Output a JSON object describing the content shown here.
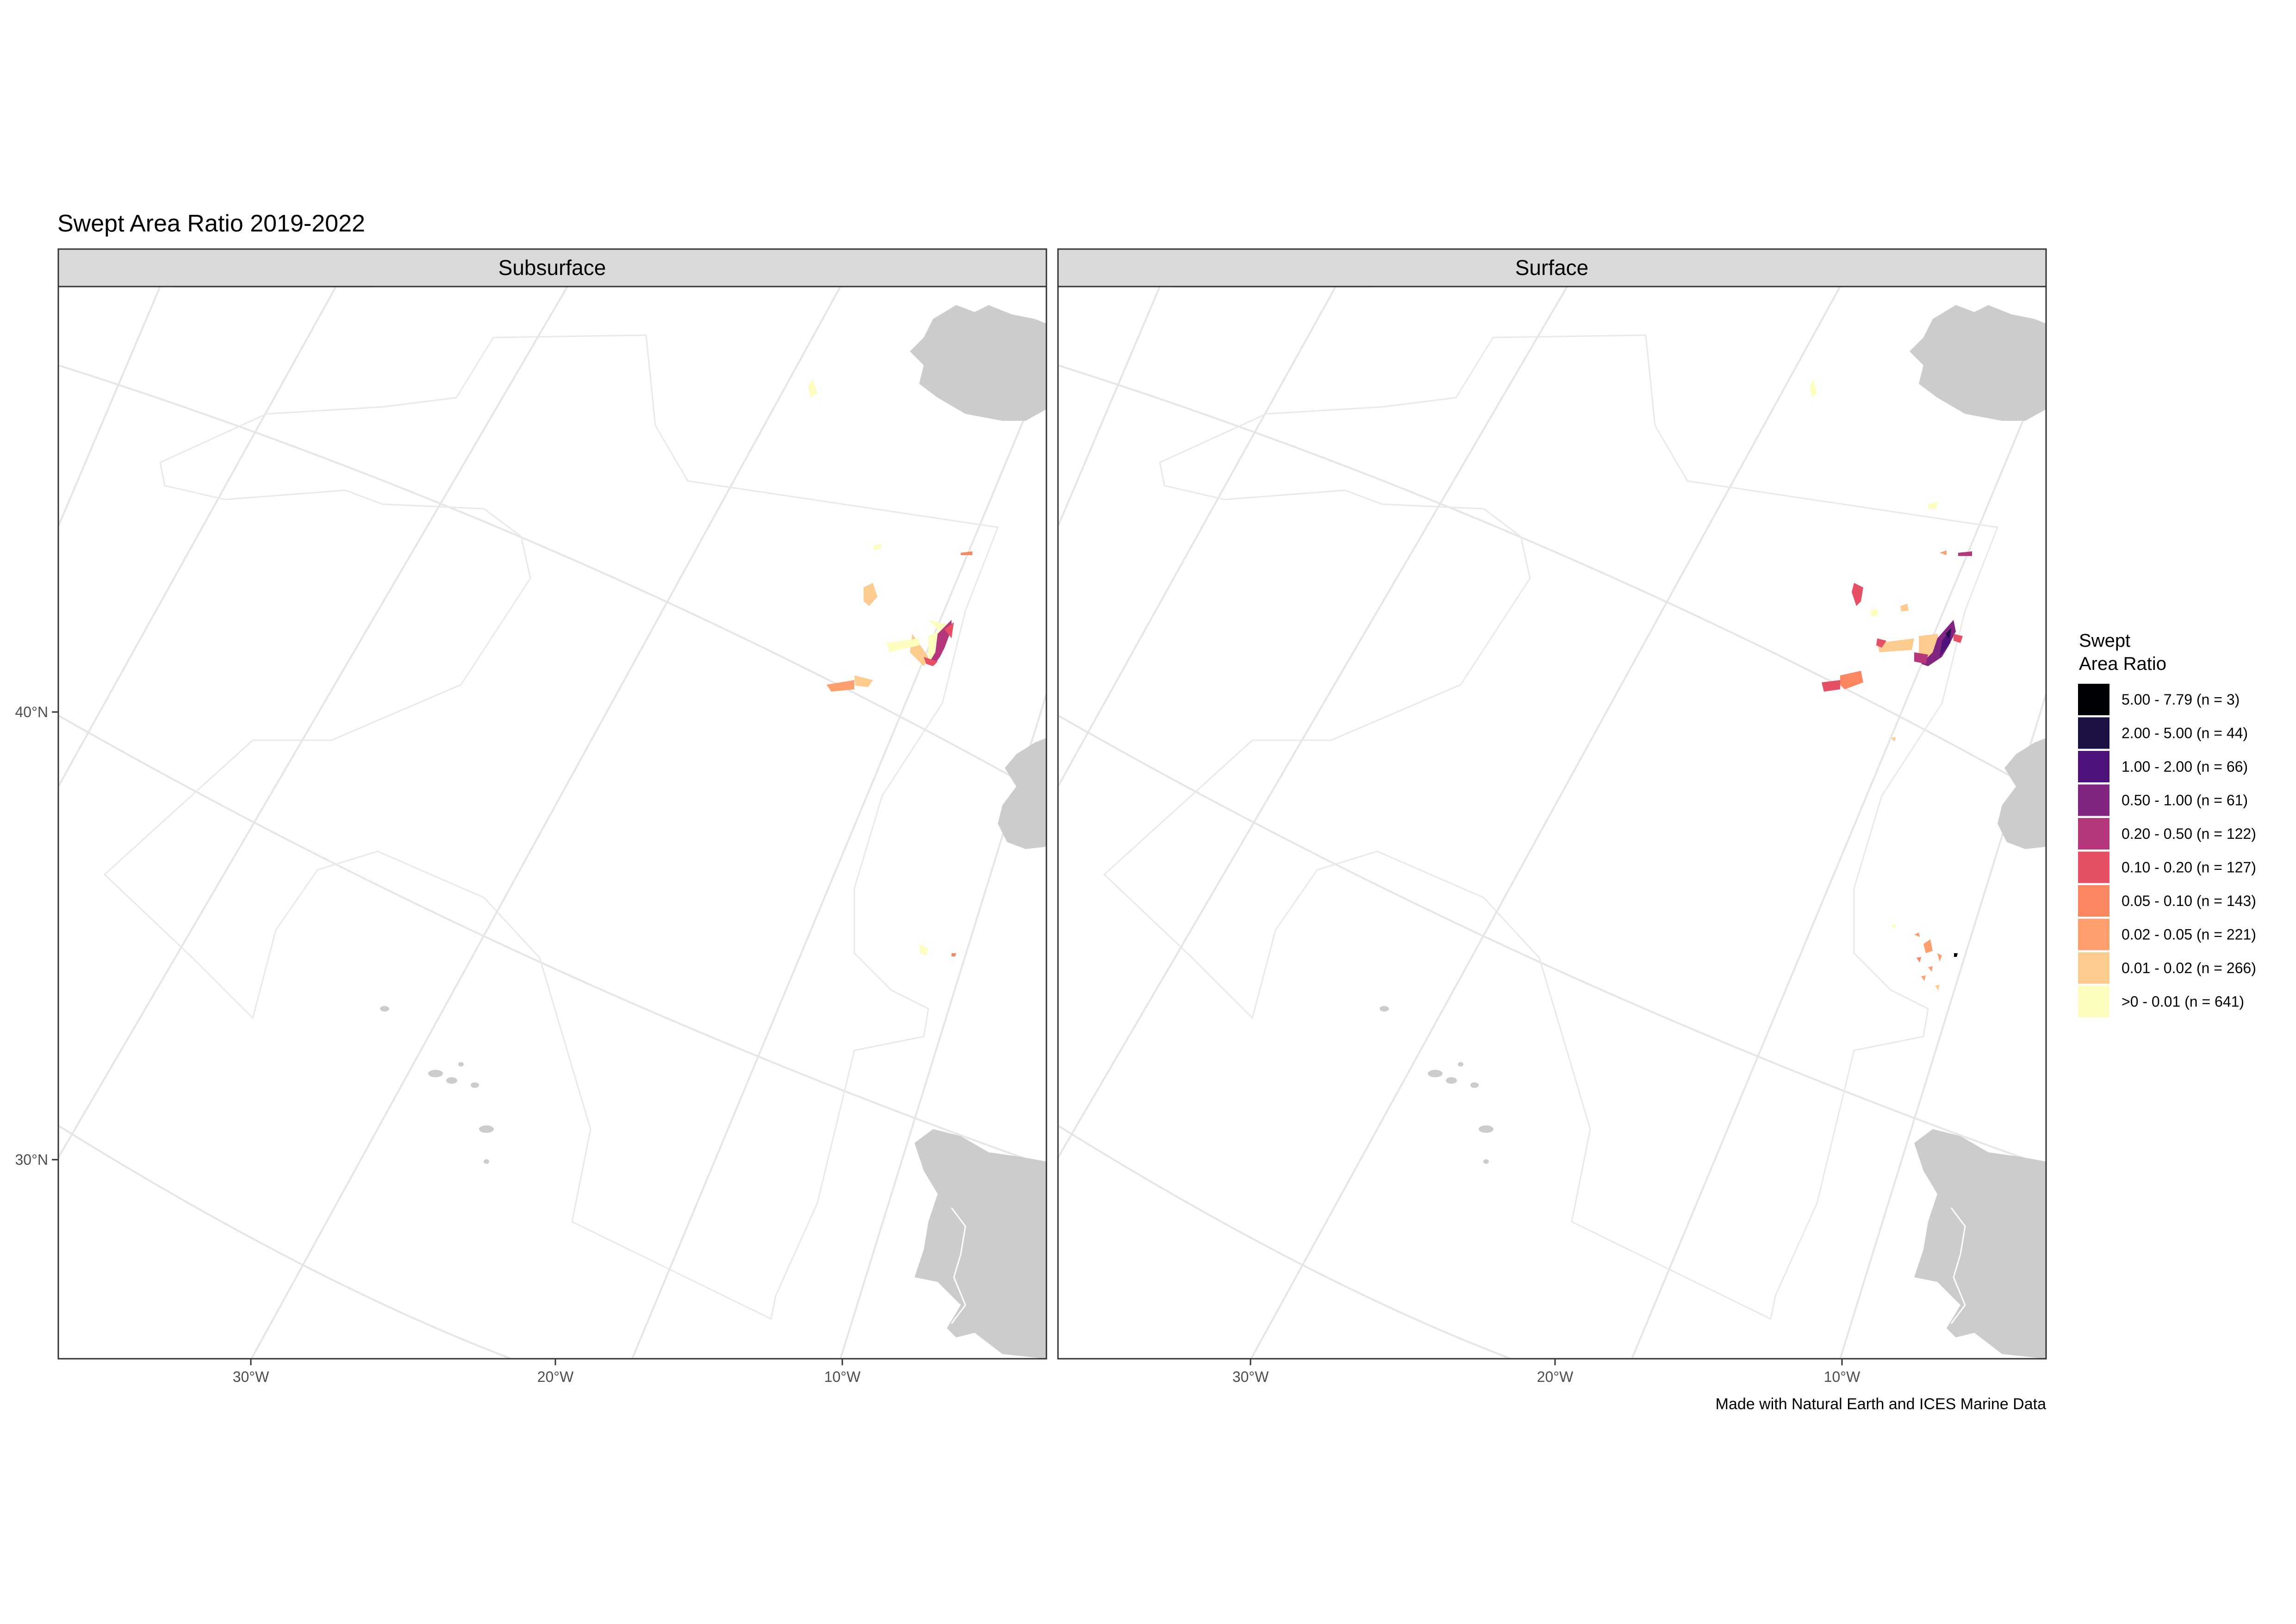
{
  "title": "Swept Area Ratio 2019-2022",
  "panels": [
    {
      "label": "Subsurface"
    },
    {
      "label": "Surface"
    }
  ],
  "axes": {
    "x_ticks": [
      "30°W",
      "20°W",
      "10°W"
    ],
    "y_ticks": [
      "40°N",
      "30°N"
    ]
  },
  "legend": {
    "title_line1": "Swept",
    "title_line2": "Area Ratio",
    "items": [
      {
        "label": "5.00 - 7.79 (n = 3)",
        "color": "#000004"
      },
      {
        "label": "2.00 - 5.00 (n = 44)",
        "color": "#1c1044"
      },
      {
        "label": "1.00 - 2.00 (n = 66)",
        "color": "#4f127b"
      },
      {
        "label": "0.50 - 1.00 (n = 61)",
        "color": "#812581"
      },
      {
        "label": "0.20 - 0.50 (n = 122)",
        "color": "#b5367a"
      },
      {
        "label": "0.10 - 0.20 (n = 127)",
        "color": "#e55064"
      },
      {
        "label": "0.05 - 0.10 (n = 143)",
        "color": "#fb8761"
      },
      {
        "label": "0.02 - 0.05 (n = 221)",
        "color": "#fe9f6d"
      },
      {
        "label": "0.01 - 0.02 (n = 266)",
        "color": "#fecc8f"
      },
      {
        "label": ">0 - 0.01 (n = 641)",
        "color": "#fcfdbf"
      }
    ]
  },
  "caption": "Made with Natural Earth and ICES Marine Data",
  "colors": {
    "land": "#cccccc",
    "graticule": "#e6e6e6",
    "strip": "#d9d9d9",
    "panel_border": "#333333"
  }
}
